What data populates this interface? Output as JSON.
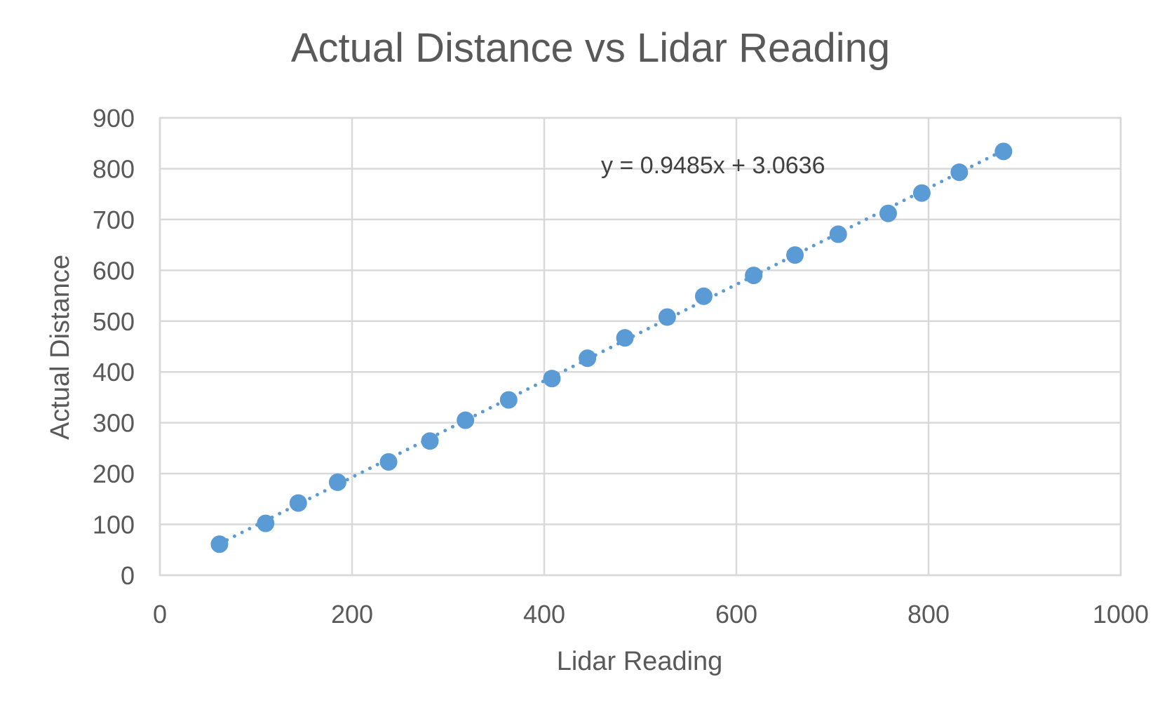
{
  "chart_data": {
    "type": "scatter",
    "title": "Actual Distance vs Lidar Reading",
    "xlabel": "Lidar Reading",
    "ylabel": "Actual Distance",
    "xlim": [
      0,
      1000
    ],
    "ylim": [
      0,
      900
    ],
    "x_ticks": [
      0,
      200,
      400,
      600,
      800,
      1000
    ],
    "y_ticks": [
      0,
      100,
      200,
      300,
      400,
      500,
      600,
      700,
      800,
      900
    ],
    "grid": true,
    "legend": "none",
    "series": [
      {
        "x": [
          62,
          110,
          144,
          185,
          238,
          281,
          318,
          363,
          408,
          445,
          484,
          528,
          566,
          618,
          661,
          706,
          758,
          793,
          832,
          878
        ],
        "y": [
          61,
          102,
          142,
          183,
          223,
          264,
          305,
          345,
          387,
          427,
          467,
          508,
          549,
          590,
          630,
          671,
          712,
          752,
          793,
          834
        ]
      }
    ],
    "trendline": {
      "type": "linear",
      "slope": 0.9485,
      "intercept": 3.0636,
      "x_range": [
        62,
        878
      ],
      "equation_label": "y = 0.9485x + 3.0636"
    },
    "colors": {
      "marker": "#5b9bd5",
      "trendline": "#5b9bd5",
      "grid": "#d9d9d9",
      "text": "#595959"
    }
  }
}
